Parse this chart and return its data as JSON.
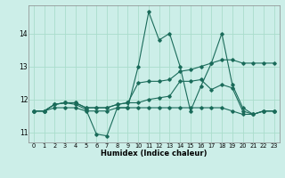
{
  "xlabel": "Humidex (Indice chaleur)",
  "ylabel": "",
  "xlim": [
    -0.5,
    23.5
  ],
  "ylim": [
    10.7,
    14.85
  ],
  "yticks": [
    11,
    12,
    13,
    14
  ],
  "xticks": [
    0,
    1,
    2,
    3,
    4,
    5,
    6,
    7,
    8,
    9,
    10,
    11,
    12,
    13,
    14,
    15,
    16,
    17,
    18,
    19,
    20,
    21,
    22,
    23
  ],
  "background_color": "#cceee8",
  "grid_color": "#aaddcc",
  "line_color": "#1a6b5a",
  "lines": [
    [
      11.65,
      11.65,
      11.85,
      11.9,
      11.85,
      11.7,
      10.95,
      10.9,
      11.75,
      11.75,
      13.0,
      14.65,
      13.8,
      14.0,
      13.0,
      11.65,
      12.4,
      13.1,
      14.0,
      12.45,
      11.75,
      11.55,
      11.65,
      11.65
    ],
    [
      11.65,
      11.65,
      11.85,
      11.9,
      11.9,
      11.75,
      11.75,
      11.75,
      11.85,
      11.9,
      12.5,
      12.55,
      12.55,
      12.6,
      12.85,
      12.9,
      13.0,
      13.1,
      13.2,
      13.2,
      13.1,
      13.1,
      13.1,
      13.1
    ],
    [
      11.65,
      11.65,
      11.85,
      11.9,
      11.9,
      11.75,
      11.75,
      11.75,
      11.85,
      11.9,
      11.9,
      12.0,
      12.05,
      12.1,
      12.55,
      12.55,
      12.6,
      12.3,
      12.45,
      12.35,
      11.65,
      11.55,
      11.65,
      11.65
    ],
    [
      11.65,
      11.65,
      11.75,
      11.75,
      11.75,
      11.65,
      11.65,
      11.65,
      11.75,
      11.75,
      11.75,
      11.75,
      11.75,
      11.75,
      11.75,
      11.75,
      11.75,
      11.75,
      11.75,
      11.65,
      11.55,
      11.55,
      11.65,
      11.65
    ]
  ]
}
